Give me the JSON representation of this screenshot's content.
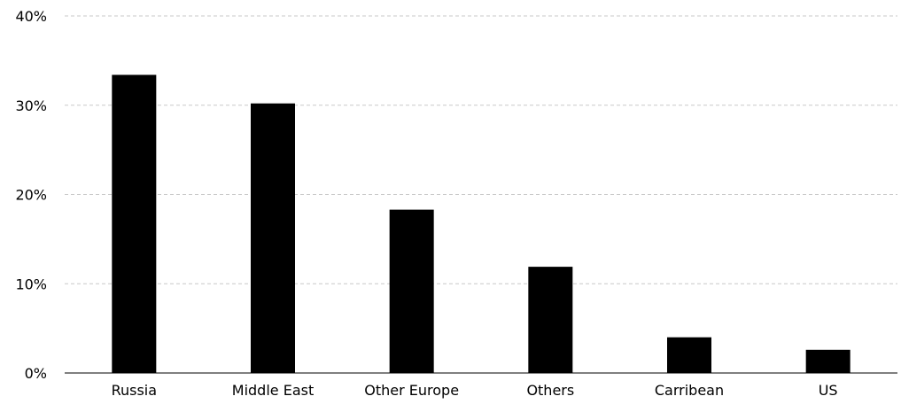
{
  "chart_data": {
    "type": "bar",
    "categories": [
      "Russia",
      "Middle East",
      "Other Europe",
      "Others",
      "Carribean",
      "US"
    ],
    "values": [
      33.4,
      30.2,
      18.3,
      11.9,
      4.0,
      2.6
    ],
    "ylim": [
      0,
      40
    ],
    "yticks": [
      0,
      10,
      20,
      30,
      40
    ],
    "ytick_labels": [
      "0%",
      "10%",
      "20%",
      "30%",
      "40%"
    ],
    "grid": true,
    "legend": "none",
    "colors": {
      "bar": "#000000",
      "grid": "#c8c8c8",
      "axis": "#000000"
    }
  }
}
